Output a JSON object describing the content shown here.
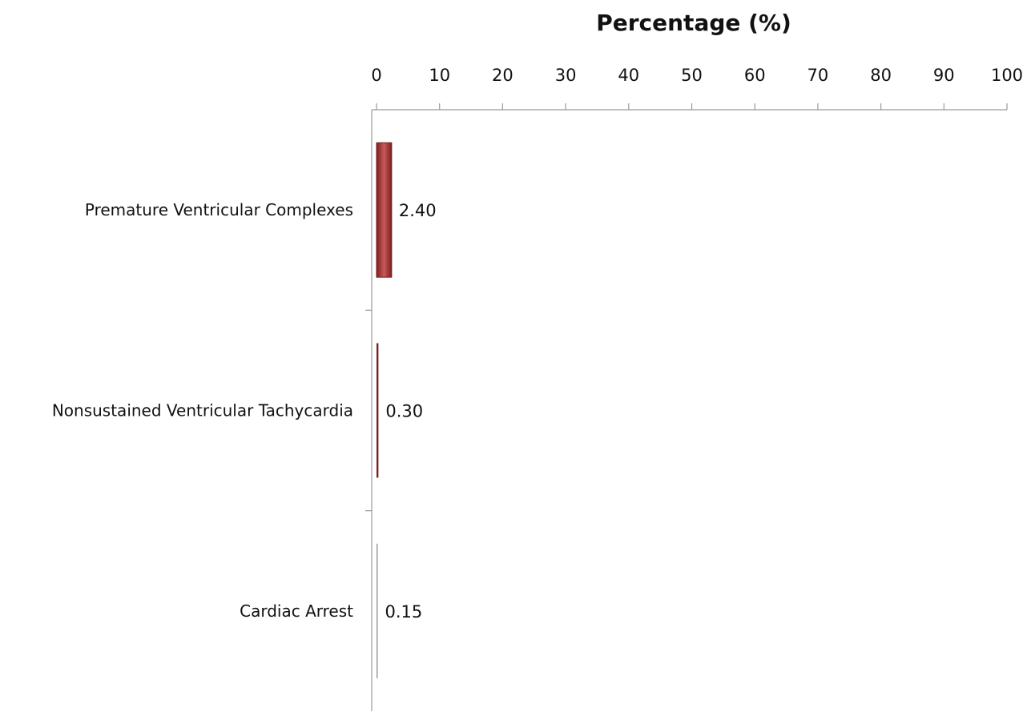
{
  "chart_data": {
    "type": "bar",
    "orientation": "horizontal",
    "title": "",
    "xlabel": "Percentage (%)",
    "ylabel": "",
    "categories": [
      "Premature Ventricular Complexes",
      "Nonsustained Ventricular Tachycardia",
      "Cardiac Arrest"
    ],
    "values": [
      2.4,
      0.3,
      0.15
    ],
    "value_labels": [
      "2.40",
      "0.30",
      "0.15"
    ],
    "xlim": [
      0,
      100
    ],
    "ticks": [
      0,
      10,
      20,
      30,
      40,
      50,
      60,
      70,
      80,
      90,
      100
    ],
    "x_axis_position": "top",
    "grid": false,
    "legend": "none",
    "colors": {
      "bar": "#a83232",
      "bar_dark": "#7a1f1f",
      "bar_light": "#c85a5a",
      "axis": "#9a9a9a"
    }
  }
}
